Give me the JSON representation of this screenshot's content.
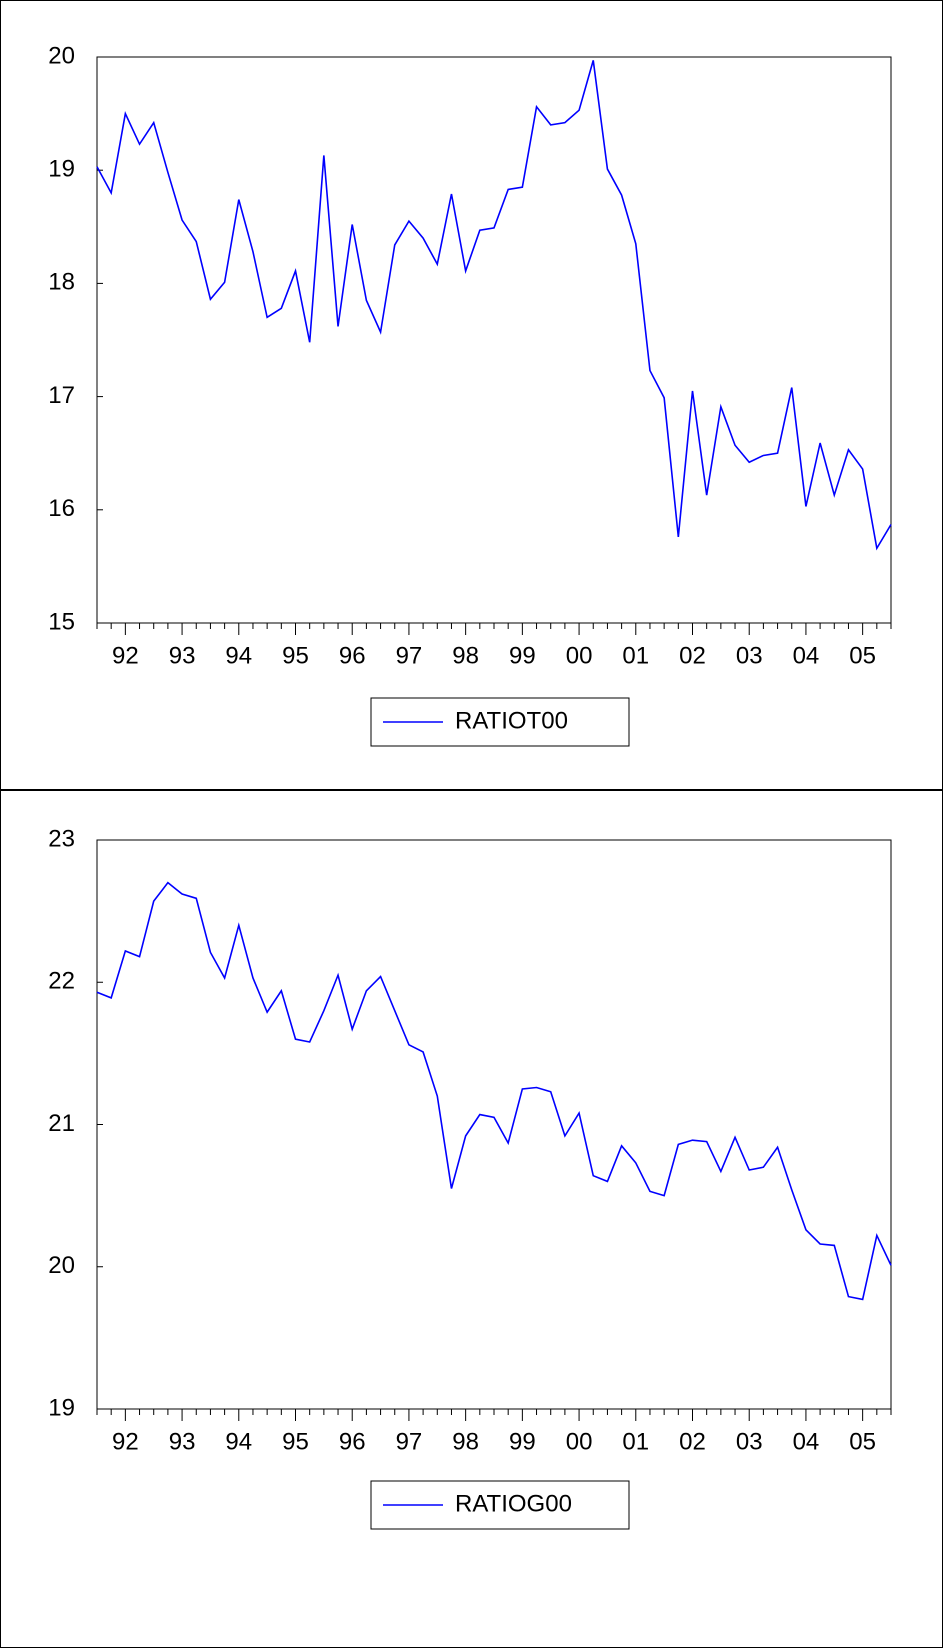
{
  "chart_data": [
    {
      "type": "line",
      "categories": [
        null,
        null,
        "92",
        null,
        null,
        null,
        "93",
        null,
        null,
        null,
        "94",
        null,
        null,
        null,
        "95",
        null,
        null,
        null,
        "96",
        null,
        null,
        null,
        "97",
        null,
        null,
        null,
        "98",
        null,
        null,
        null,
        "99",
        null,
        null,
        null,
        "00",
        null,
        null,
        null,
        "01",
        null,
        null,
        null,
        "02",
        null,
        null,
        null,
        "03",
        null,
        null,
        null,
        "04",
        null,
        null,
        null,
        "05",
        null,
        null
      ],
      "series": [
        {
          "name": "RATIOT00",
          "color": "#0000ff",
          "values": [
            19.03,
            18.8,
            19.5,
            19.23,
            19.42,
            18.98,
            18.56,
            18.37,
            17.86,
            18.01,
            18.74,
            18.28,
            17.7,
            17.78,
            18.11,
            17.48,
            19.13,
            17.62,
            18.52,
            17.85,
            17.57,
            18.34,
            18.55,
            18.4,
            18.17,
            18.79,
            18.11,
            18.47,
            18.49,
            18.83,
            18.85,
            19.56,
            19.4,
            19.42,
            19.53,
            19.97,
            19.01,
            18.78,
            18.35,
            17.23,
            16.99,
            15.76,
            17.05,
            16.13,
            16.91,
            16.57,
            16.42,
            16.48,
            16.5,
            17.08,
            16.03,
            16.59,
            16.13,
            16.53,
            16.36,
            15.66,
            15.87
          ]
        }
      ],
      "ylim": [
        15,
        20
      ],
      "yticks": [
        15,
        16,
        17,
        18,
        19,
        20
      ]
    },
    {
      "type": "line",
      "categories": [
        null,
        null,
        "92",
        null,
        null,
        null,
        "93",
        null,
        null,
        null,
        "94",
        null,
        null,
        null,
        "95",
        null,
        null,
        null,
        "96",
        null,
        null,
        null,
        "97",
        null,
        null,
        null,
        "98",
        null,
        null,
        null,
        "99",
        null,
        null,
        null,
        "00",
        null,
        null,
        null,
        "01",
        null,
        null,
        null,
        "02",
        null,
        null,
        null,
        "03",
        null,
        null,
        null,
        "04",
        null,
        null,
        null,
        "05",
        null,
        null
      ],
      "series": [
        {
          "name": "RATIOG00",
          "color": "#0000ff",
          "values": [
            21.93,
            21.89,
            22.22,
            22.18,
            22.57,
            22.7,
            22.62,
            22.59,
            22.21,
            22.03,
            22.4,
            22.03,
            21.79,
            21.94,
            21.6,
            21.58,
            21.8,
            22.05,
            21.67,
            21.94,
            22.04,
            21.8,
            21.56,
            21.51,
            21.2,
            20.55,
            20.92,
            21.07,
            21.05,
            20.87,
            21.25,
            21.26,
            21.23,
            20.92,
            21.08,
            20.64,
            20.6,
            20.85,
            20.73,
            20.53,
            20.5,
            20.86,
            20.89,
            20.88,
            20.67,
            20.91,
            20.68,
            20.7,
            20.84,
            20.54,
            20.26,
            20.16,
            20.15,
            19.79,
            19.77,
            20.22,
            20.01
          ]
        }
      ],
      "ylim": [
        19,
        23
      ],
      "yticks": [
        19,
        20,
        21,
        22,
        23
      ]
    }
  ]
}
